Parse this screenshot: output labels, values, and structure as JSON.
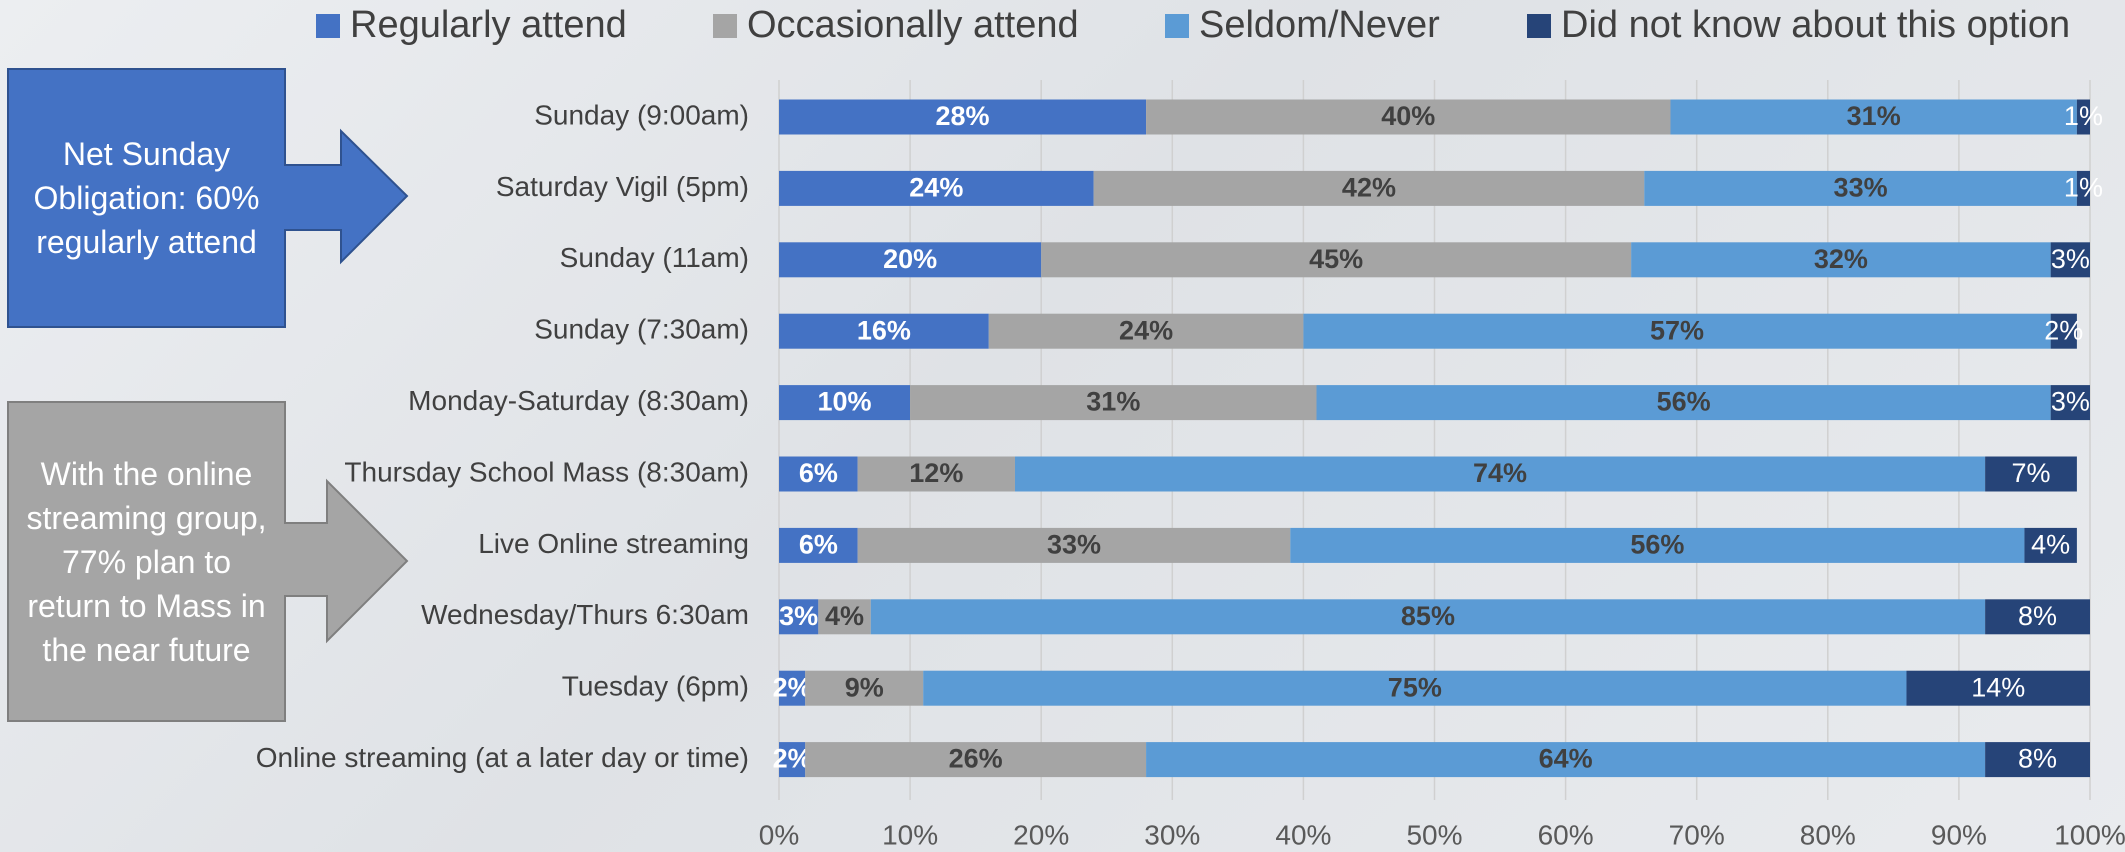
{
  "chart_data": {
    "type": "stacked_bar_horizontal",
    "categories": [
      "Sunday (9:00am)",
      "Saturday Vigil (5pm)",
      "Sunday (11am)",
      "Sunday (7:30am)",
      "Monday-Saturday (8:30am)",
      "Thursday School Mass (8:30am)",
      "Live Online streaming",
      "Wednesday/Thurs 6:30am",
      "Tuesday (6pm)",
      "Online streaming (at a later day or time)"
    ],
    "series": [
      {
        "name": "Regularly attend",
        "color": "#4472c4",
        "values": [
          28,
          24,
          20,
          16,
          10,
          6,
          6,
          3,
          2,
          2
        ],
        "value_labels": [
          "28%",
          "24%",
          "20%",
          "16%",
          "10%",
          "6%",
          "6%",
          "3%",
          "2%",
          "2%"
        ]
      },
      {
        "name": "Occasionally attend",
        "color": "#a5a5a5",
        "values": [
          40,
          42,
          45,
          24,
          31,
          12,
          33,
          4,
          9,
          26
        ],
        "value_labels": [
          "40%",
          "42%",
          "45%",
          "24%",
          "31%",
          "12%",
          "33%",
          "4%",
          "9%",
          "26%"
        ]
      },
      {
        "name": "Seldom/Never",
        "color": "#5b9bd5",
        "values": [
          31,
          33,
          32,
          57,
          56,
          74,
          56,
          85,
          75,
          64
        ],
        "value_labels": [
          "31%",
          "33%",
          "32%",
          "57%",
          "56%",
          "74%",
          "56%",
          "85%",
          "75%",
          "64%"
        ]
      },
      {
        "name": "Did not know about this option",
        "color": "#264478",
        "values": [
          1,
          1,
          3,
          2,
          3,
          7,
          4,
          8,
          14,
          8
        ],
        "value_labels": [
          "1%",
          "1%",
          "3%",
          "2%",
          "3%",
          "7%",
          "4%",
          "8%",
          "14%",
          "8%"
        ]
      }
    ],
    "xlim": [
      0,
      100
    ],
    "xticks": [
      {
        "value": 0,
        "label": "0%"
      },
      {
        "value": 10,
        "label": "10%"
      },
      {
        "value": 20,
        "label": "20%"
      },
      {
        "value": 30,
        "label": "30%"
      },
      {
        "value": 40,
        "label": "40%"
      },
      {
        "value": 50,
        "label": "50%"
      },
      {
        "value": 60,
        "label": "60%"
      },
      {
        "value": 70,
        "label": "70%"
      },
      {
        "value": 80,
        "label": "80%"
      },
      {
        "value": 90,
        "label": "90%"
      },
      {
        "value": 100,
        "label": "100%"
      }
    ],
    "grid": true,
    "legend": "top",
    "annotations": [
      {
        "text": "Net Sunday Obligation: 60% regularly attend"
      },
      {
        "text": "With the online streaming group, 77% plan to return to Mass in the near future"
      }
    ]
  }
}
